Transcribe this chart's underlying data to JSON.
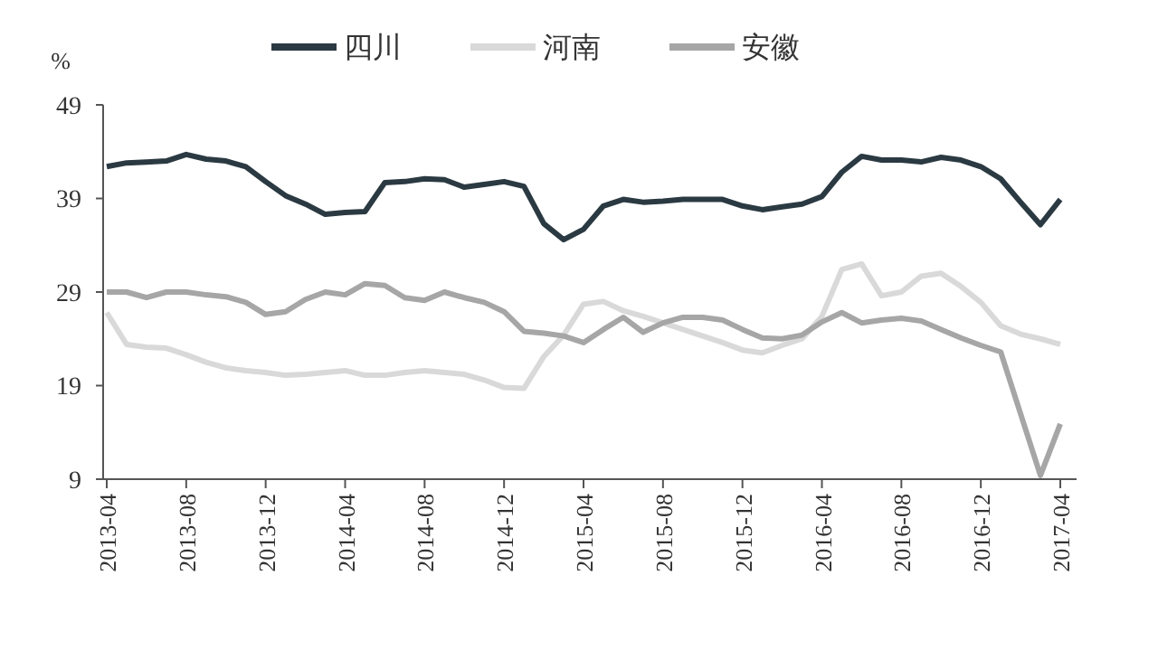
{
  "chart_data": {
    "type": "line",
    "ylabel": "%",
    "legend": "top",
    "categories": [
      "2013-04",
      null,
      null,
      null,
      "2013-08",
      null,
      null,
      null,
      "2013-12",
      null,
      null,
      null,
      "2014-04",
      null,
      null,
      null,
      "2014-08",
      null,
      null,
      null,
      "2014-12",
      null,
      null,
      null,
      "2015-04",
      null,
      null,
      null,
      "2015-08",
      null,
      null,
      null,
      "2015-12",
      null,
      null,
      null,
      "2016-04",
      null,
      null,
      null,
      "2016-08",
      null,
      null,
      null,
      "2016-12",
      null,
      null,
      null,
      "2017-04"
    ],
    "ylim": [
      9,
      49
    ],
    "yticks": [
      9,
      19,
      29,
      39,
      49
    ],
    "grid": false,
    "marker": "none",
    "line_style": "solid",
    "series": [
      {
        "name": "四川",
        "color": "#2b3a42",
        "values": [
          42.4,
          42.8,
          42.9,
          43.0,
          43.7,
          43.2,
          43.0,
          42.4,
          40.8,
          39.3,
          38.4,
          37.3,
          37.5,
          37.6,
          40.7,
          40.8,
          41.1,
          41.0,
          40.2,
          40.5,
          40.8,
          40.3,
          36.3,
          34.6,
          35.7,
          38.2,
          38.9,
          38.6,
          38.7,
          38.9,
          38.9,
          38.9,
          38.2,
          37.8,
          38.1,
          38.4,
          39.2,
          41.8,
          43.5,
          43.1,
          43.1,
          42.9,
          43.4,
          43.1,
          42.4,
          41.1,
          38.6,
          36.2,
          38.9
        ]
      },
      {
        "name": "河南",
        "color": "#d9d9d9",
        "values": [
          26.8,
          23.4,
          23.1,
          23.0,
          22.3,
          21.5,
          20.9,
          20.6,
          20.4,
          20.1,
          20.2,
          20.4,
          20.6,
          20.1,
          20.1,
          20.4,
          20.6,
          20.4,
          20.2,
          19.6,
          18.8,
          18.7,
          22.1,
          24.4,
          27.7,
          28.0,
          27.0,
          26.4,
          25.7,
          25.0,
          24.3,
          23.6,
          22.8,
          22.5,
          23.3,
          24.0,
          26.4,
          31.4,
          32.0,
          28.6,
          29.0,
          30.7,
          31.0,
          29.6,
          27.9,
          25.4,
          24.5,
          24.0,
          23.4
        ]
      },
      {
        "name": "安徽",
        "color": "#a6a6a6",
        "values": [
          29.0,
          29.0,
          28.4,
          29.0,
          29.0,
          28.7,
          28.5,
          27.9,
          26.6,
          26.9,
          28.2,
          29.0,
          28.7,
          29.9,
          29.7,
          28.4,
          28.1,
          29.0,
          28.4,
          27.9,
          26.9,
          24.8,
          24.6,
          24.3,
          23.6,
          25.0,
          26.3,
          24.7,
          25.7,
          26.3,
          26.3,
          26.0,
          25.0,
          24.1,
          24.0,
          24.4,
          25.8,
          26.8,
          25.7,
          26.0,
          26.2,
          25.9,
          25.0,
          24.1,
          23.3,
          22.6,
          16.0,
          9.4,
          14.9
        ]
      }
    ]
  }
}
